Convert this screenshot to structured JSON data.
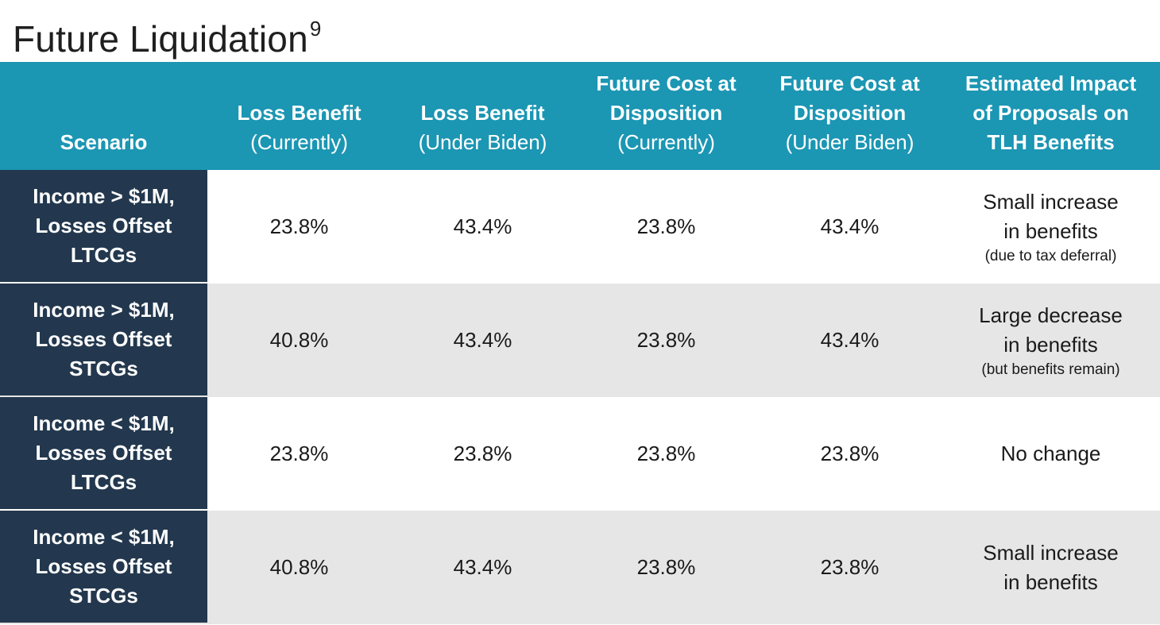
{
  "title": {
    "text": "Future Liquidation",
    "footnote": "9"
  },
  "table": {
    "headers": [
      {
        "lines": [
          {
            "text": "Scenario",
            "weight": "bold"
          }
        ]
      },
      {
        "lines": [
          {
            "text": "Loss Benefit",
            "weight": "bold"
          },
          {
            "text": "(Currently)",
            "weight": "normal"
          }
        ]
      },
      {
        "lines": [
          {
            "text": "Loss Benefit",
            "weight": "bold"
          },
          {
            "text": "(Under Biden)",
            "weight": "normal"
          }
        ]
      },
      {
        "lines": [
          {
            "text": "Future Cost at",
            "weight": "bold"
          },
          {
            "text": "Disposition",
            "weight": "bold"
          },
          {
            "text": "(Currently)",
            "weight": "normal"
          }
        ]
      },
      {
        "lines": [
          {
            "text": "Future Cost at",
            "weight": "bold"
          },
          {
            "text": "Disposition",
            "weight": "bold"
          },
          {
            "text": "(Under Biden)",
            "weight": "normal"
          }
        ]
      },
      {
        "lines": [
          {
            "text": "Estimated Impact",
            "weight": "bold"
          },
          {
            "text": "of Proposals on",
            "weight": "bold"
          },
          {
            "text": "TLH Benefits",
            "weight": "bold"
          }
        ]
      }
    ],
    "rows": [
      {
        "scenario": [
          "Income > $1M,",
          "Losses Offset",
          "LTCGs"
        ],
        "values": [
          "23.8%",
          "43.4%",
          "23.8%",
          "43.4%"
        ],
        "impact": {
          "main": [
            "Small increase",
            "in benefits"
          ],
          "note": "(due to tax deferral)"
        }
      },
      {
        "scenario": [
          "Income > $1M,",
          "Losses Offset",
          "STCGs"
        ],
        "values": [
          "40.8%",
          "43.4%",
          "23.8%",
          "43.4%"
        ],
        "impact": {
          "main": [
            "Large decrease",
            "in benefits"
          ],
          "note": "(but benefits remain)"
        }
      },
      {
        "scenario": [
          "Income < $1M,",
          "Losses Offset",
          "LTCGs"
        ],
        "values": [
          "23.8%",
          "23.8%",
          "23.8%",
          "23.8%"
        ],
        "impact": {
          "main": [
            "No change"
          ],
          "note": ""
        }
      },
      {
        "scenario": [
          "Income < $1M,",
          "Losses Offset",
          "STCGs"
        ],
        "values": [
          "40.8%",
          "43.4%",
          "23.8%",
          "23.8%"
        ],
        "impact": {
          "main": [
            "Small increase",
            "in benefits"
          ],
          "note": ""
        }
      }
    ]
  },
  "colors": {
    "header_bg": "#1b96b3",
    "scenario_bg": "#23384e",
    "alt_row_bg": "#e6e6e6"
  }
}
